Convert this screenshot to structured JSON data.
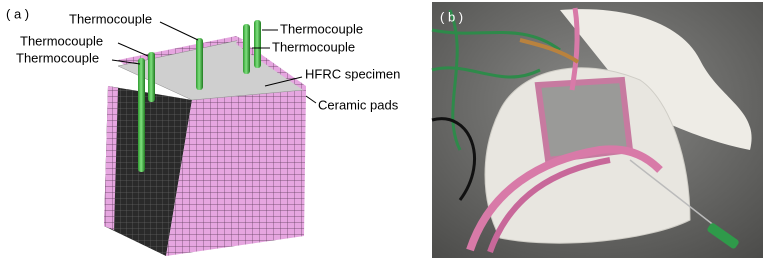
{
  "panel_a": {
    "label": "( a )",
    "callouts": [
      "Thermocouple",
      "Thermocouple",
      "Thermocouple",
      "Thermocouple",
      "Thermocouple",
      "HFRC specimen",
      "Ceramic pads"
    ]
  },
  "panel_b": {
    "label": "( b )"
  }
}
